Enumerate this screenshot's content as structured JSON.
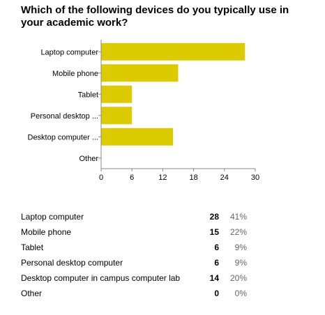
{
  "question": "Which of the following devices do you typically use in your academic work?",
  "chart_data": {
    "type": "bar",
    "orientation": "horizontal",
    "categories": [
      "Laptop computer",
      "Mobile phone",
      "Tablet",
      "Personal desktop ...",
      "Desktop computer ...",
      "Other"
    ],
    "values": [
      28,
      15,
      6,
      6,
      14,
      0
    ],
    "xlim": [
      0,
      30
    ],
    "xticks": [
      0,
      6,
      12,
      18,
      24,
      30
    ],
    "bar_color": "#dccb00",
    "grid": false,
    "title": "",
    "xlabel": "",
    "ylabel": ""
  },
  "summary": {
    "rows": [
      {
        "label": "Laptop computer",
        "count": "28",
        "percent": "41%"
      },
      {
        "label": "Mobile phone",
        "count": "15",
        "percent": "22%"
      },
      {
        "label": "Tablet",
        "count": "6",
        "percent": "9%"
      },
      {
        "label": "Personal desktop computer",
        "count": "6",
        "percent": "9%"
      },
      {
        "label": "Desktop computer in campus computer lab",
        "count": "14",
        "percent": "20%"
      },
      {
        "label": "Other",
        "count": "0",
        "percent": "0%"
      }
    ]
  }
}
